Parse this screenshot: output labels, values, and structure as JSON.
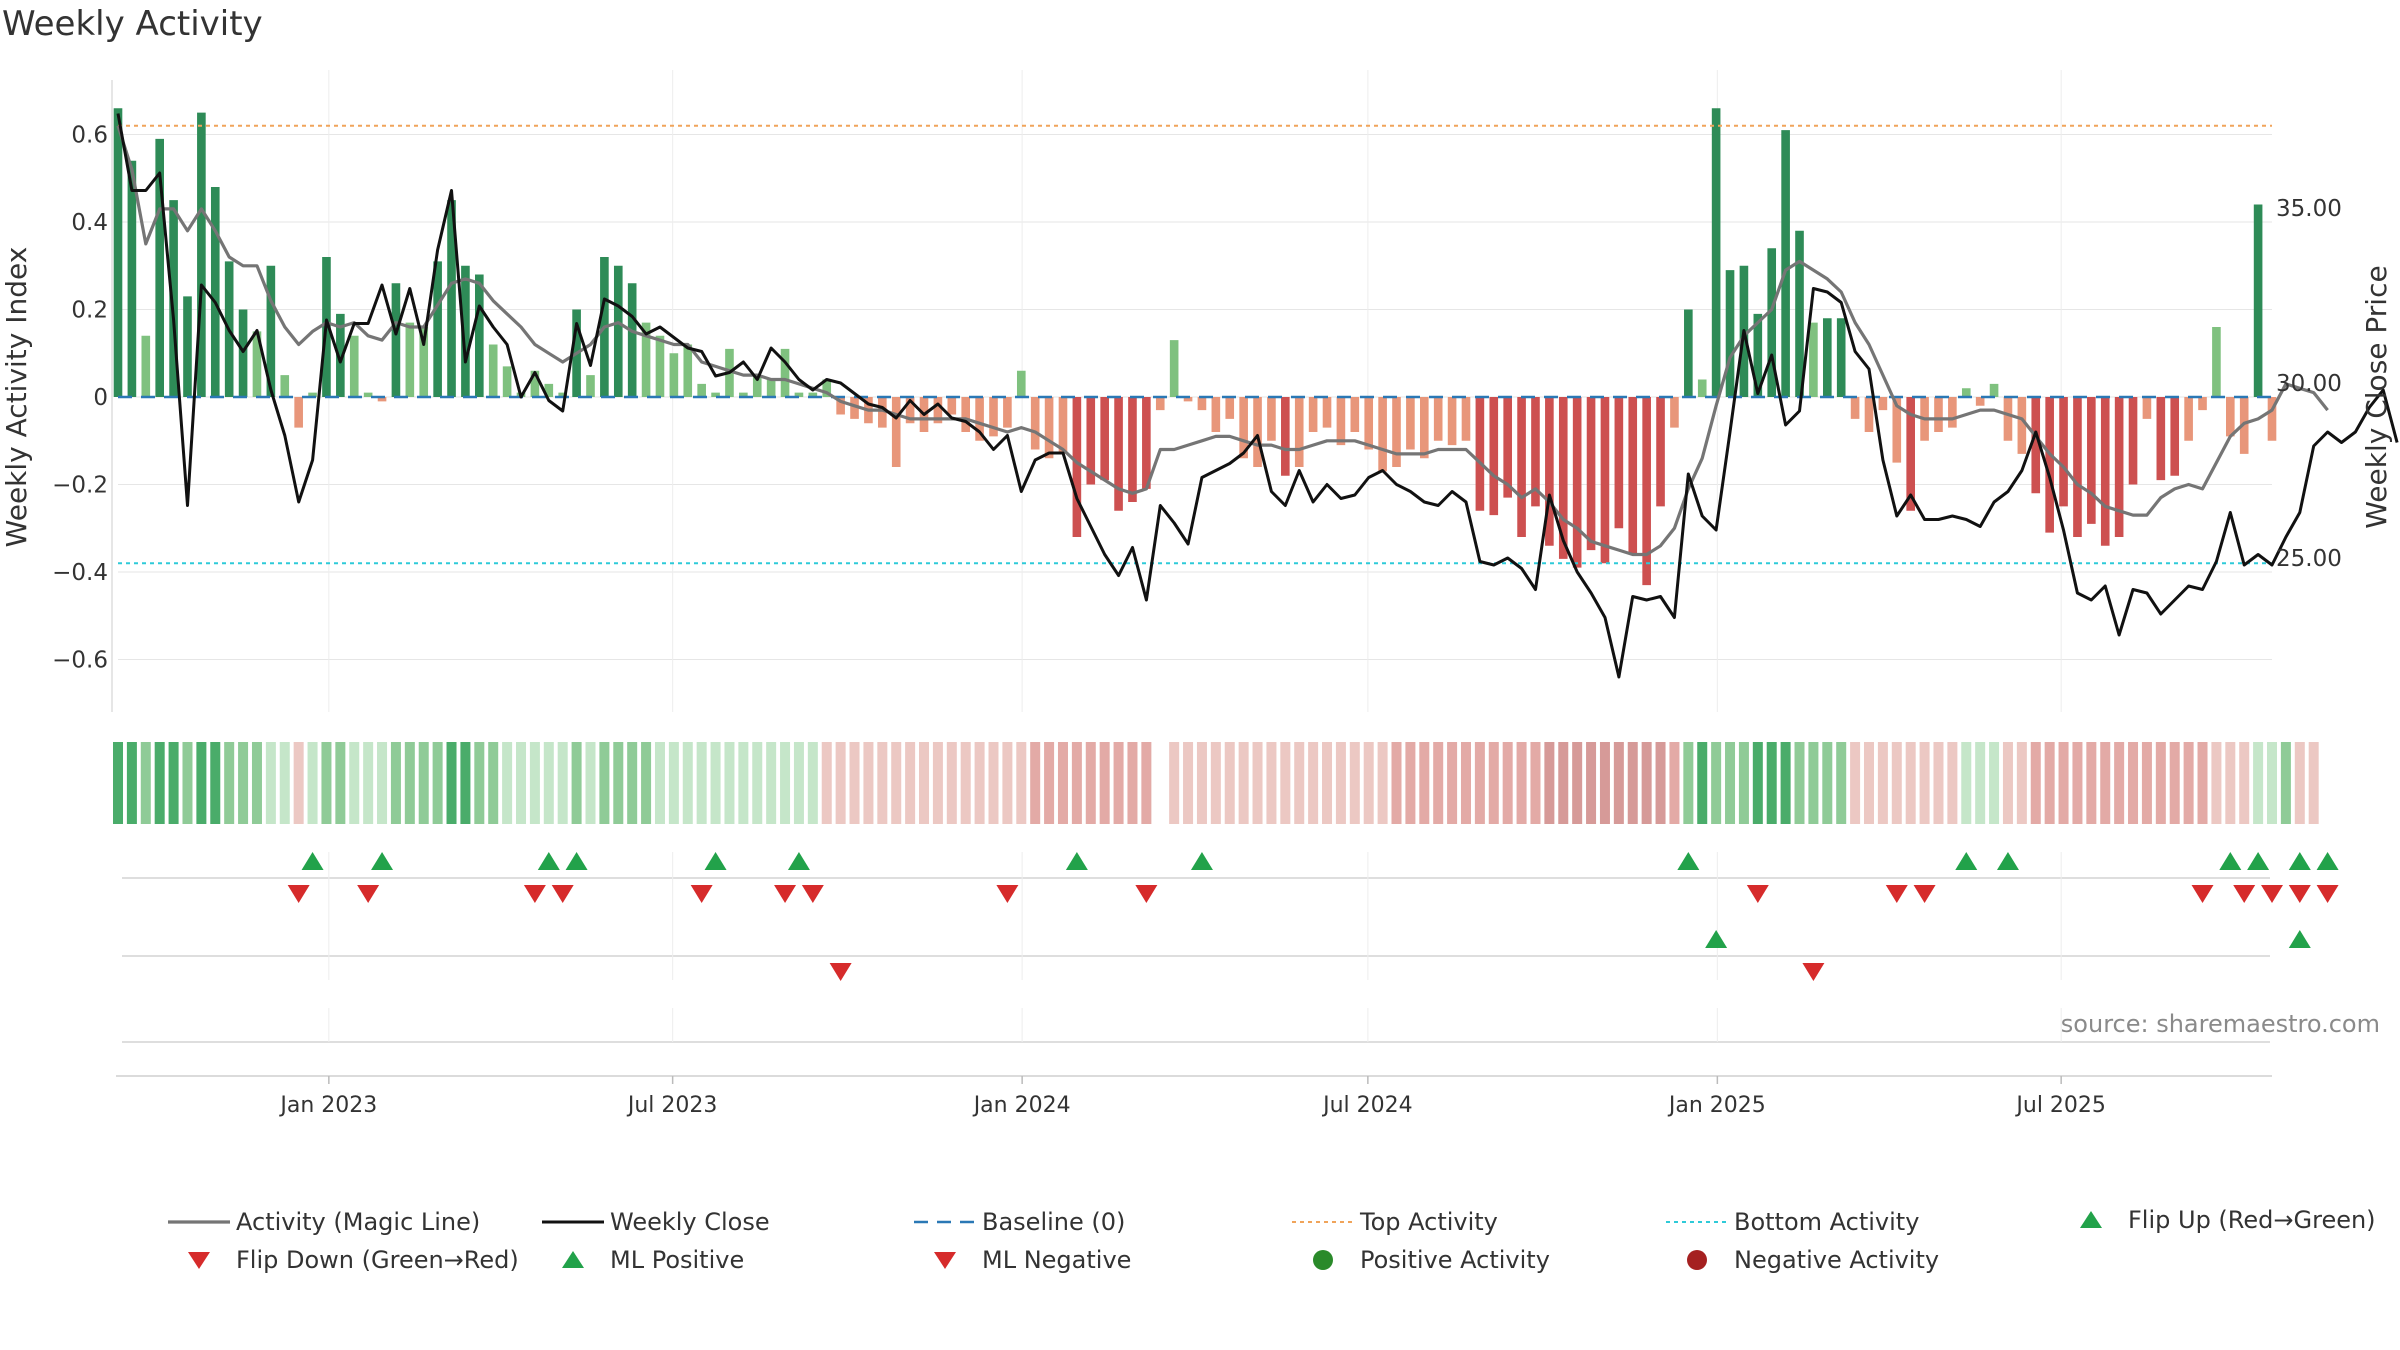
{
  "title": "Weekly Activity",
  "source_note": "source: sharemaestro.com",
  "colors": {
    "magic_line": "#757575",
    "close": "#111111",
    "baseline": "#2a78b5",
    "top": "#f0a45a",
    "bottom": "#2ecad8",
    "pos_strong": "#2e8b57",
    "pos_weak": "#7fc17f",
    "neg_strong": "#cd5050",
    "neg_weak": "#e8967a",
    "flip_up": "#22a24a",
    "flip_down": "#d62b2b",
    "pos_dot": "#2a8a2a",
    "neg_dot": "#a52020"
  },
  "legend": [
    {
      "label": "Activity (Magic Line)",
      "icon": "solid-gray-line"
    },
    {
      "label": "Weekly Close",
      "icon": "solid-black-line"
    },
    {
      "label": "Baseline (0)",
      "icon": "dashed-blue-line"
    },
    {
      "label": "Top Activity",
      "icon": "dotted-orange-line"
    },
    {
      "label": "Bottom Activity",
      "icon": "dotted-cyan-line"
    },
    {
      "label": "Flip Up (Red→Green)",
      "icon": "green-up-triangle"
    },
    {
      "label": "Flip Down (Green→Red)",
      "icon": "red-down-triangle"
    },
    {
      "label": "ML Positive",
      "icon": "green-up-triangle"
    },
    {
      "label": "ML Negative",
      "icon": "red-down-triangle"
    },
    {
      "label": "Positive Activity",
      "icon": "green-dot"
    },
    {
      "label": "Negative Activity",
      "icon": "red-dot"
    }
  ],
  "chart_data": {
    "type": "bar",
    "title": "Weekly Activity",
    "ylabel": "Weekly Activity Index",
    "y2label": "Weekly Close Price",
    "ylim": [
      -0.72,
      0.72
    ],
    "y2lim": [
      20.6,
      38.6
    ],
    "y_ticks": [
      0.6,
      0.4,
      0.2,
      0,
      -0.2,
      -0.4,
      -0.6
    ],
    "y_tick_labels": [
      "0.6",
      "0.4",
      "0.2",
      "0",
      "−0.2",
      "−0.4",
      "−0.6"
    ],
    "y2_ticks": [
      35,
      30,
      25
    ],
    "y2_tick_labels": [
      "35.00",
      "30.00",
      "25.00"
    ],
    "x_start": "2022-09-12",
    "x_end": "2025-10-20",
    "x_ticks": [
      "2023-01-01",
      "2023-07-01",
      "2024-01-01",
      "2024-07-01",
      "2025-01-01",
      "2025-07-01"
    ],
    "x_tick_labels": [
      "Jan 2023",
      "Jul 2023",
      "Jan 2024",
      "Jul 2024",
      "Jan 2025",
      "Jul 2025"
    ],
    "top_activity": 0.62,
    "bottom_activity": -0.38,
    "baseline": 0,
    "grid": true,
    "legend_position": "bottom",
    "activity": [
      0.66,
      0.54,
      0.14,
      0.59,
      0.45,
      0.23,
      0.65,
      0.48,
      0.31,
      0.2,
      0.15,
      0.3,
      0.05,
      -0.07,
      0.01,
      0.32,
      0.19,
      0.14,
      0.01,
      -0.01,
      0.26,
      0.17,
      0.16,
      0.31,
      0.45,
      0.3,
      0.28,
      0.12,
      0.07,
      0.01,
      0.06,
      0.03,
      0.01,
      0.2,
      0.05,
      0.32,
      0.3,
      0.26,
      0.17,
      0.14,
      0.1,
      0.12,
      0.03,
      0.01,
      0.11,
      0.01,
      0.05,
      0.04,
      0.11,
      0.01,
      0.01,
      0.04,
      -0.04,
      -0.05,
      -0.06,
      -0.07,
      -0.16,
      -0.06,
      -0.08,
      -0.06,
      -0.04,
      -0.08,
      -0.1,
      -0.09,
      -0.07,
      0.06,
      -0.12,
      -0.14,
      -0.13,
      -0.32,
      -0.2,
      -0.19,
      -0.26,
      -0.24,
      -0.21,
      -0.03,
      0.13,
      -0.01,
      -0.03,
      -0.08,
      -0.05,
      -0.14,
      -0.16,
      -0.1,
      -0.18,
      -0.16,
      -0.08,
      -0.07,
      -0.11,
      -0.08,
      -0.12,
      -0.17,
      -0.16,
      -0.12,
      -0.14,
      -0.1,
      -0.11,
      -0.1,
      -0.26,
      -0.27,
      -0.23,
      -0.32,
      -0.25,
      -0.34,
      -0.37,
      -0.39,
      -0.35,
      -0.38,
      -0.3,
      -0.36,
      -0.43,
      -0.25,
      -0.07,
      0.2,
      0.04,
      0.66,
      0.29,
      0.3,
      0.19,
      0.34,
      0.61,
      0.38,
      0.17,
      0.18,
      0.18,
      -0.05,
      -0.08,
      -0.03,
      -0.15,
      -0.26,
      -0.1,
      -0.08,
      -0.07,
      0.02,
      -0.02,
      0.03,
      -0.1,
      -0.13,
      -0.22,
      -0.31,
      -0.25,
      -0.32,
      -0.29,
      -0.34,
      -0.32,
      -0.2,
      -0.05,
      -0.19,
      -0.18,
      -0.1,
      -0.03,
      0.16,
      -0.09,
      -0.13,
      0.44,
      -0.1
    ],
    "magic_line": [
      0.62,
      0.52,
      0.35,
      0.43,
      0.43,
      0.38,
      0.43,
      0.38,
      0.32,
      0.3,
      0.3,
      0.22,
      0.16,
      0.12,
      0.15,
      0.17,
      0.16,
      0.17,
      0.14,
      0.13,
      0.17,
      0.16,
      0.16,
      0.21,
      0.26,
      0.27,
      0.26,
      0.22,
      0.19,
      0.16,
      0.12,
      0.1,
      0.08,
      0.1,
      0.12,
      0.16,
      0.17,
      0.15,
      0.14,
      0.13,
      0.12,
      0.12,
      0.08,
      0.07,
      0.06,
      0.05,
      0.05,
      0.04,
      0.04,
      0.03,
      0.02,
      0.01,
      -0.01,
      -0.02,
      -0.03,
      -0.03,
      -0.04,
      -0.05,
      -0.05,
      -0.05,
      -0.05,
      -0.05,
      -0.06,
      -0.07,
      -0.08,
      -0.07,
      -0.08,
      -0.1,
      -0.12,
      -0.15,
      -0.17,
      -0.19,
      -0.21,
      -0.22,
      -0.21,
      -0.12,
      -0.12,
      -0.11,
      -0.1,
      -0.09,
      -0.09,
      -0.1,
      -0.11,
      -0.11,
      -0.12,
      -0.12,
      -0.11,
      -0.1,
      -0.1,
      -0.1,
      -0.11,
      -0.12,
      -0.13,
      -0.13,
      -0.13,
      -0.12,
      -0.12,
      -0.12,
      -0.15,
      -0.18,
      -0.2,
      -0.23,
      -0.21,
      -0.24,
      -0.28,
      -0.3,
      -0.33,
      -0.34,
      -0.35,
      -0.36,
      -0.36,
      -0.34,
      -0.3,
      -0.21,
      -0.14,
      -0.02,
      0.09,
      0.14,
      0.17,
      0.2,
      0.29,
      0.31,
      0.29,
      0.27,
      0.24,
      0.17,
      0.12,
      0.05,
      -0.02,
      -0.04,
      -0.05,
      -0.05,
      -0.05,
      -0.04,
      -0.03,
      -0.03,
      -0.04,
      -0.05,
      -0.09,
      -0.13,
      -0.16,
      -0.2,
      -0.22,
      -0.25,
      -0.26,
      -0.27,
      -0.27,
      -0.23,
      -0.21,
      -0.2,
      -0.21,
      -0.15,
      -0.09,
      -0.06,
      -0.05,
      -0.03,
      0.03,
      0.02,
      0.01,
      -0.03
    ],
    "weekly_close": [
      37.7,
      35.5,
      35.5,
      36.0,
      31.8,
      26.5,
      32.8,
      32.3,
      31.5,
      30.9,
      31.5,
      29.8,
      28.5,
      26.6,
      27.8,
      31.8,
      30.6,
      31.7,
      31.7,
      32.8,
      31.4,
      32.7,
      31.1,
      33.8,
      35.5,
      30.6,
      32.2,
      31.6,
      31.1,
      29.6,
      30.3,
      29.5,
      29.2,
      31.7,
      30.5,
      32.4,
      32.2,
      31.9,
      31.4,
      31.6,
      31.3,
      31.0,
      30.9,
      30.2,
      30.3,
      30.6,
      30.1,
      31.0,
      30.6,
      30.1,
      29.8,
      30.1,
      30.0,
      29.7,
      29.4,
      29.3,
      29.0,
      29.5,
      29.1,
      29.4,
      29.0,
      28.9,
      28.6,
      28.1,
      28.5,
      26.9,
      27.8,
      28.0,
      28.0,
      26.7,
      25.9,
      25.1,
      24.5,
      25.3,
      23.8,
      26.5,
      26.0,
      25.4,
      27.3,
      27.5,
      27.7,
      28.0,
      28.5,
      26.9,
      26.5,
      27.5,
      26.6,
      27.1,
      26.7,
      26.8,
      27.3,
      27.5,
      27.1,
      26.9,
      26.6,
      26.5,
      26.9,
      26.6,
      24.9,
      24.8,
      25.0,
      24.7,
      24.1,
      26.8,
      25.5,
      24.6,
      24.0,
      23.3,
      21.6,
      23.9,
      23.8,
      23.9,
      23.3,
      27.4,
      26.2,
      25.8,
      28.6,
      31.5,
      29.7,
      30.8,
      28.8,
      29.2,
      32.7,
      32.6,
      32.3,
      30.9,
      30.4,
      27.8,
      26.2,
      26.8,
      26.1,
      26.1,
      26.2,
      26.1,
      25.9,
      26.6,
      26.9,
      27.5,
      28.6,
      27.3,
      25.8,
      24.0,
      23.8,
      24.2,
      22.8,
      24.1,
      24.0,
      23.4,
      23.8,
      24.2,
      24.1,
      24.9,
      26.3,
      24.8,
      25.1,
      24.8,
      25.6,
      26.3,
      28.2,
      28.6,
      28.3,
      28.6,
      29.3,
      29.8,
      28.3
    ],
    "band_intensity": [
      3,
      3,
      2,
      3,
      3,
      2,
      3,
      3,
      2,
      2,
      2,
      1,
      1,
      -1,
      1,
      2,
      2,
      1,
      1,
      1,
      2,
      2,
      2,
      2,
      3,
      3,
      2,
      2,
      1,
      1,
      1,
      1,
      1,
      2,
      1,
      2,
      2,
      2,
      2,
      1,
      1,
      1,
      1,
      1,
      1,
      1,
      1,
      1,
      1,
      1,
      1,
      -1,
      -1,
      -1,
      -1,
      -1,
      -1,
      -1,
      -1,
      -1,
      -1,
      -1,
      -1,
      -1,
      -1,
      -1,
      -2,
      -2,
      -2,
      -2,
      -2,
      -2,
      -2,
      -2,
      -2,
      0,
      -1,
      -1,
      -1,
      -1,
      -1,
      -1,
      -1,
      -1,
      -1,
      -1,
      -1,
      -1,
      -1,
      -1,
      -1,
      -1,
      -2,
      -2,
      -2,
      -2,
      -2,
      -2,
      -2,
      -2,
      -2,
      -2,
      -2,
      -3,
      -3,
      -3,
      -3,
      -3,
      -3,
      -3,
      -3,
      -3,
      -2,
      2,
      3,
      2,
      2,
      2,
      3,
      3,
      3,
      2,
      2,
      2,
      2,
      -1,
      -1,
      -1,
      -1,
      -1,
      -1,
      -1,
      -1,
      1,
      1,
      1,
      -1,
      -1,
      -2,
      -2,
      -2,
      -2,
      -2,
      -2,
      -2,
      -2,
      -2,
      -2,
      -2,
      -2,
      -2,
      -1,
      -1,
      -1,
      1,
      1,
      2,
      -1,
      -1
    ],
    "flip_up": [
      14,
      19,
      31,
      33,
      43,
      49,
      69,
      78,
      113,
      133,
      136,
      152,
      154,
      157,
      159
    ],
    "flip_down": [
      13,
      18,
      30,
      32,
      42,
      48,
      50,
      64,
      74,
      118,
      128,
      130,
      150,
      153,
      155,
      157,
      159
    ],
    "ml_positive": [
      115,
      157
    ],
    "ml_negative": [
      52,
      122
    ]
  }
}
